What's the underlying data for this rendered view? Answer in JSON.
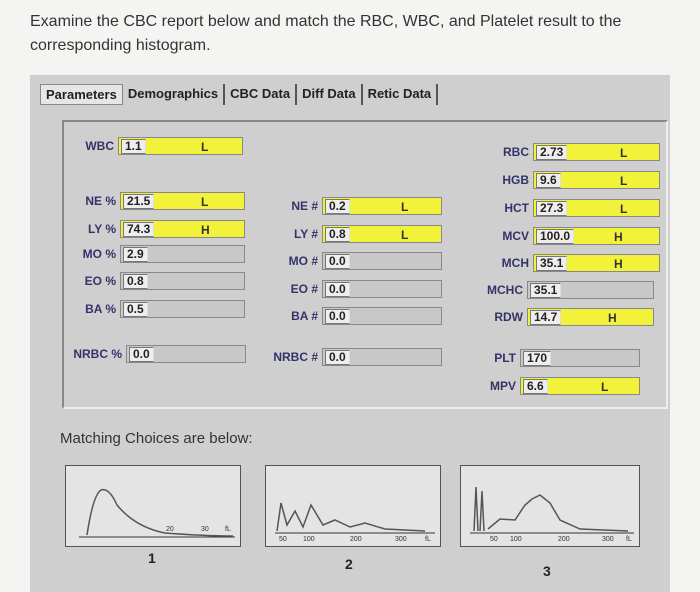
{
  "question": "Examine the CBC report below and match the RBC, WBC, and Platelet result to the corresponding histogram.",
  "tabs": [
    "Parameters",
    "Demographics",
    "CBC Data",
    "Diff Data",
    "Retic Data"
  ],
  "fields": [
    {
      "label": "WBC",
      "value": "1.1",
      "flag": "L"
    },
    {
      "label": "NE %",
      "value": "21.5",
      "flag": "L"
    },
    {
      "label": "LY %",
      "value": "74.3",
      "flag": "H"
    },
    {
      "label": "MO %",
      "value": "2.9"
    },
    {
      "label": "EO %",
      "value": "0.8"
    },
    {
      "label": "BA %",
      "value": "0.5"
    },
    {
      "label": "NRBC %",
      "value": "0.0"
    },
    {
      "label": "NE #",
      "value": "0.2",
      "flag": "L"
    },
    {
      "label": "LY #",
      "value": "0.8",
      "flag": "L"
    },
    {
      "label": "MO #",
      "value": "0.0"
    },
    {
      "label": "EO #",
      "value": "0.0"
    },
    {
      "label": "BA #",
      "value": "0.0"
    },
    {
      "label": "NRBC #",
      "value": "0.0"
    },
    {
      "label": "RBC",
      "value": "2.73",
      "flag": "L"
    },
    {
      "label": "HGB",
      "value": "9.6",
      "flag": "L"
    },
    {
      "label": "HCT",
      "value": "27.3",
      "flag": "L"
    },
    {
      "label": "MCV",
      "value": "100.0",
      "flag": "H"
    },
    {
      "label": "MCH",
      "value": "35.1",
      "flag": "H"
    },
    {
      "label": "MCHC",
      "value": "35.1"
    },
    {
      "label": "RDW",
      "value": "14.7",
      "flag": "H"
    },
    {
      "label": "PLT",
      "value": "170"
    },
    {
      "label": "MPV",
      "value": "6.6",
      "flag": "L"
    }
  ],
  "matching_label": "Matching Choices are below:",
  "histograms": [
    {
      "number": "1",
      "ticks": [
        "20",
        "30",
        "fL"
      ]
    },
    {
      "number": "2",
      "ticks": [
        "50",
        "100",
        "200",
        "300",
        "fL"
      ]
    },
    {
      "number": "3",
      "ticks": [
        "50",
        "100",
        "200",
        "300",
        "fL"
      ]
    }
  ]
}
